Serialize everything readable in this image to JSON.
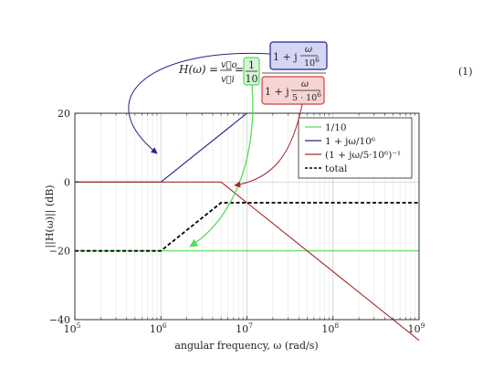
{
  "chart_data": {
    "type": "line",
    "xscale": "log",
    "xlim": [
      100000,
      1000000000
    ],
    "ylim": [
      -40,
      20
    ],
    "x_ticks": [
      {
        "base": "10",
        "exp": "5",
        "value": 100000
      },
      {
        "base": "10",
        "exp": "6",
        "value": 1000000
      },
      {
        "base": "10",
        "exp": "7",
        "value": 10000000
      },
      {
        "base": "10",
        "exp": "8",
        "value": 100000000
      },
      {
        "base": "10",
        "exp": "9",
        "value": 1000000000
      }
    ],
    "y_ticks": [
      {
        "label": "20",
        "value": 20
      },
      {
        "label": "0",
        "value": 0
      },
      {
        "label": "−20",
        "value": -20
      },
      {
        "label": "−40",
        "value": -40
      }
    ],
    "xlabel": "angular frequency, ω (rad/s)",
    "ylabel": "||H(ω)|| (dB)",
    "grid": true,
    "legend_position": "top-right",
    "series": [
      {
        "name": "1/10",
        "color": "#55dd55",
        "dash": "solid",
        "x": [
          100000,
          1000000,
          5000000,
          10000000,
          1000000000
        ],
        "y": [
          -20,
          -20,
          -20,
          -20,
          -20
        ]
      },
      {
        "name": "1 + jω/10⁶",
        "color": "#23238e",
        "dash": "solid",
        "x": [
          100000,
          1000000,
          10000000
        ],
        "y": [
          0,
          0,
          20
        ]
      },
      {
        "name": "(1 + jω/5·10⁶)⁻¹",
        "color": "#a52a2a",
        "dash": "solid",
        "x": [
          100000,
          5000000,
          1000000000
        ],
        "y": [
          0,
          0,
          -46.02
        ]
      },
      {
        "name": "total",
        "color": "#000000",
        "dash": "dashed",
        "x": [
          100000,
          1000000,
          5000000,
          1000000000
        ],
        "y": [
          -20,
          -20,
          -6.02,
          -6.02
        ]
      }
    ],
    "equation": {
      "lhs": "H(ω)",
      "ratio_num": "v⃗o",
      "ratio_den": "v⃗i",
      "gain_num": "1",
      "gain_den": "10",
      "zero_prefix": "1 + j",
      "zero_num": "ω",
      "zero_den_base": "10",
      "zero_den_exp": "6",
      "pole_prefix": "1 + j",
      "pole_num": "ω",
      "pole_den_base": "5 · 10",
      "pole_den_exp": "6",
      "number": "(1)"
    }
  }
}
